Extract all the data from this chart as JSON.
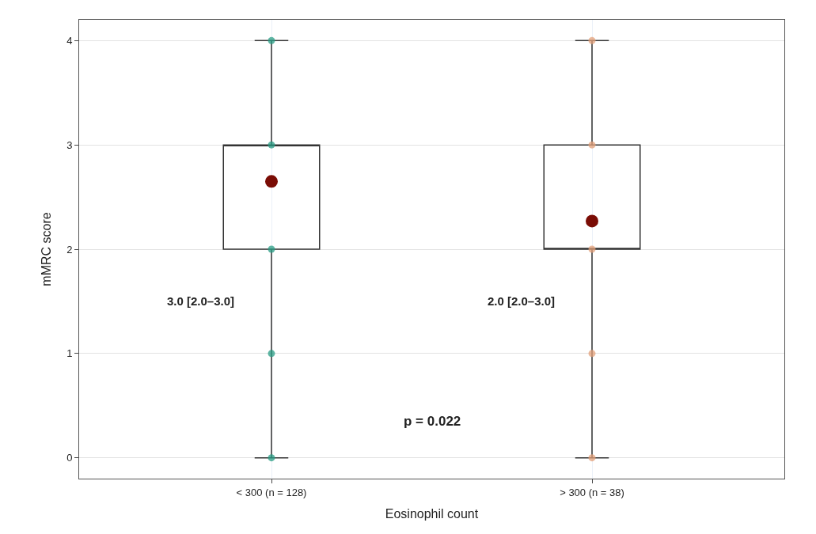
{
  "chart_data": {
    "type": "box",
    "xlabel": "Eosinophil count",
    "ylabel": "mMRC score",
    "categories": [
      "< 300 (n = 128)",
      "> 300 (n = 38)"
    ],
    "boxes": [
      {
        "low": 0,
        "q1": 2,
        "median": 3,
        "q3": 3,
        "high": 4,
        "mean": 2.65
      },
      {
        "low": 0,
        "q1": 2,
        "median": 2,
        "q3": 3,
        "high": 4,
        "mean": 2.27
      }
    ],
    "series": [
      {
        "type": "scatter",
        "color": "#2a9d85",
        "x": [
          "< 300 (n = 128)",
          "< 300 (n = 128)",
          "< 300 (n = 128)",
          "< 300 (n = 128)",
          "< 300 (n = 128)"
        ],
        "values": [
          0,
          1,
          2,
          3,
          4
        ]
      },
      {
        "type": "scatter",
        "color": "#e3a07a",
        "x": [
          "> 300 (n = 38)",
          "> 300 (n = 38)",
          "> 300 (n = 38)",
          "> 300 (n = 38)",
          "> 300 (n = 38)"
        ],
        "values": [
          0,
          1,
          2,
          3,
          4
        ]
      }
    ],
    "ylim": [
      -0.2,
      4.2
    ],
    "yticks": [
      0,
      1,
      2,
      3,
      4
    ],
    "grid": true,
    "annotations": [
      "3.0 [2.0–3.0]",
      "2.0 [2.0–3.0]",
      "p = 0.022"
    ]
  }
}
